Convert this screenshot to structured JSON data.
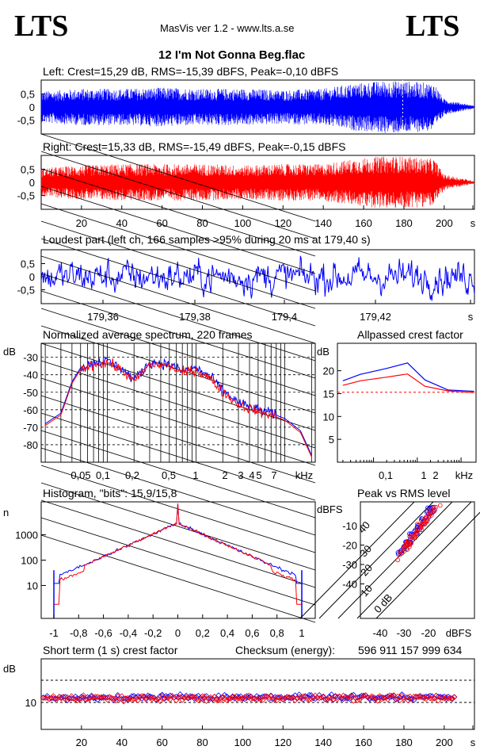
{
  "header": {
    "logo_left": "LTS",
    "logo_right": "LTS",
    "app": "MasVis ver 1.2 - www.lts.a.se",
    "file_title": "12 I'm Not Gonna Beg.flac",
    "checksum_label": "Checksum (energy):",
    "checksum_value": "596 911 157 999 634"
  },
  "chart_data": [
    {
      "id": "left-waveform",
      "type": "line",
      "title": "Left: Crest=15,29 dB, RMS=-15,39 dBFS, Peak=-0,10 dBFS",
      "yticks": [
        "0,5",
        "0",
        "-0,5"
      ],
      "ylim": [
        -1,
        1
      ],
      "xlim": [
        0,
        215
      ],
      "series": [
        {
          "color": "#0000ff",
          "envelope": [
            [
              0,
              0.6
            ],
            [
              20,
              0.7
            ],
            [
              40,
              0.7
            ],
            [
              60,
              0.75
            ],
            [
              80,
              0.7
            ],
            [
              100,
              0.7
            ],
            [
              120,
              0.65
            ],
            [
              140,
              0.7
            ],
            [
              155,
              0.9
            ],
            [
              170,
              1.0
            ],
            [
              180,
              1.0
            ],
            [
              195,
              0.9
            ],
            [
              200,
              0.3
            ],
            [
              215,
              0.05
            ]
          ]
        }
      ]
    },
    {
      "id": "right-waveform",
      "type": "line",
      "title": "Right: Crest=15,33 dB, RMS=-15,49 dBFS, Peak=-0,15 dBFS",
      "yticks": [
        "0,5",
        "0",
        "-0,5"
      ],
      "ylim": [
        -1,
        1
      ],
      "xlim": [
        0,
        215
      ],
      "xticks": [
        "20",
        "40",
        "60",
        "80",
        "100",
        "120",
        "140",
        "160",
        "180",
        "200",
        "s"
      ],
      "series": [
        {
          "color": "#ff0000",
          "envelope": [
            [
              0,
              0.55
            ],
            [
              20,
              0.65
            ],
            [
              40,
              0.7
            ],
            [
              60,
              0.7
            ],
            [
              80,
              0.7
            ],
            [
              100,
              0.65
            ],
            [
              120,
              0.7
            ],
            [
              140,
              0.7
            ],
            [
              155,
              0.9
            ],
            [
              170,
              1.0
            ],
            [
              180,
              1.0
            ],
            [
              195,
              0.9
            ],
            [
              200,
              0.3
            ],
            [
              215,
              0.05
            ]
          ]
        }
      ]
    },
    {
      "id": "loudest-part",
      "type": "line",
      "title": "Loudest part (left  ch, 166 samples >95% during 20 ms at 179,40 s)",
      "yticks": [
        "0,5",
        "0",
        "-0,5"
      ],
      "ylim": [
        -1,
        1
      ],
      "xticks": [
        "179,36",
        "179,38",
        "179,4",
        "179,42",
        "s"
      ],
      "series": [
        {
          "color": "#0000ff"
        }
      ]
    },
    {
      "id": "spectrum",
      "type": "line",
      "title": "Normalized average spectrum, 220 frames",
      "ylabel": "dB",
      "yticks": [
        "-30",
        "-40",
        "-50",
        "-60",
        "-70",
        "-80"
      ],
      "xticks": [
        "0,05",
        "0,1",
        "0,2",
        "0,5",
        "1",
        "2",
        "3",
        "4",
        "5",
        "7",
        "kHz"
      ],
      "series": [
        {
          "color": "#0000ff",
          "x": [
            0.02,
            0.03,
            0.04,
            0.05,
            0.07,
            0.1,
            0.15,
            0.2,
            0.3,
            0.5,
            0.7,
            1,
            1.5,
            2,
            3,
            5,
            7,
            10,
            15,
            20
          ],
          "y": [
            -68,
            -62,
            -44,
            -36,
            -33,
            -32,
            -37,
            -43,
            -33,
            -34,
            -38,
            -36,
            -42,
            -49,
            -56,
            -60,
            -62,
            -65,
            -72,
            -86
          ]
        },
        {
          "color": "#ff0000",
          "x": [
            0.02,
            0.03,
            0.04,
            0.05,
            0.07,
            0.1,
            0.15,
            0.2,
            0.3,
            0.5,
            0.7,
            1,
            1.5,
            2,
            3,
            5,
            7,
            10,
            15,
            20
          ],
          "y": [
            -69,
            -63,
            -45,
            -37,
            -34,
            -33,
            -38,
            -44,
            -34,
            -35,
            -39,
            -37,
            -43,
            -50,
            -57,
            -61,
            -63,
            -66,
            -73,
            -87
          ]
        }
      ]
    },
    {
      "id": "allpassed-crest",
      "type": "line",
      "title": "Allpassed crest factor",
      "ylabel": "dB",
      "yticks": [
        "20",
        "15",
        "10",
        "5"
      ],
      "ylim": [
        0,
        26
      ],
      "xticks": [
        "0,1",
        "1",
        "2",
        "kHz"
      ],
      "reference_line": 15.3,
      "series": [
        {
          "color": "#0000ff",
          "x": [
            0.02,
            0.05,
            0.2,
            0.6,
            1.5,
            5,
            20
          ],
          "y": [
            17.8,
            19.2,
            20.5,
            21.7,
            18.0,
            15.8,
            15.5
          ]
        },
        {
          "color": "#ff0000",
          "x": [
            0.02,
            0.05,
            0.2,
            0.6,
            1.5,
            5,
            20
          ],
          "y": [
            16.8,
            17.8,
            18.6,
            19.3,
            16.6,
            15.6,
            15.2
          ]
        }
      ]
    },
    {
      "id": "histogram",
      "type": "line",
      "title": "Histogram, \"bits\": 15,9/15,8",
      "ylabel": "n",
      "yticks": [
        "1000",
        "100",
        "10"
      ],
      "yscale": "log",
      "xticks": [
        "-1",
        "-0,8",
        "-0,6",
        "-0,4",
        "-0,2",
        "0",
        "0,2",
        "0,4",
        "0,6",
        "0,8",
        "1"
      ],
      "series": [
        {
          "color": "#0000ff"
        },
        {
          "color": "#ff0000"
        }
      ]
    },
    {
      "id": "peak-vs-rms",
      "type": "scatter",
      "title": "Peak vs RMS level",
      "ylabel": "dBFS",
      "yticks": [
        "-10",
        "-20",
        "-30",
        "-40"
      ],
      "xticks": [
        "-40",
        "-30",
        "-20",
        "dBFS"
      ],
      "diagonal_labels": [
        "0 dB",
        "10",
        "20",
        "30",
        "40"
      ],
      "series": [
        {
          "color": "#0000ff"
        },
        {
          "color": "#ff0000"
        }
      ]
    },
    {
      "id": "short-term-crest",
      "type": "scatter",
      "title": "Short term (1 s) crest factor",
      "ylabel": "dB",
      "yticks": [
        "10"
      ],
      "xticks": [
        "20",
        "40",
        "60",
        "80",
        "100",
        "120",
        "140",
        "160",
        "180",
        "200",
        "s"
      ],
      "series": [
        {
          "color": "#0000ff"
        },
        {
          "color": "#ff0000"
        }
      ]
    }
  ]
}
